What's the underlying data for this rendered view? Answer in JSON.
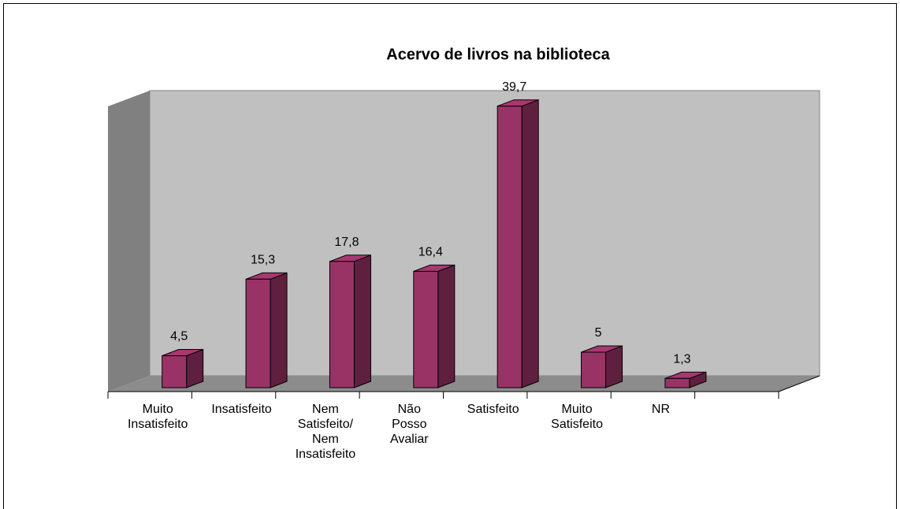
{
  "chart_data": {
    "type": "bar3d",
    "title": "Acervo de livros na biblioteca",
    "categories": [
      "Muito Insatisfeito",
      "Insatisfeito",
      "Nem Satisfeito/ Nem Insatisfeito",
      "Não Posso Avaliar",
      "Satisfeito",
      "Muito Satisfeito",
      "NR",
      null
    ],
    "values": [
      4.5,
      15.3,
      17.8,
      16.4,
      39.7,
      5,
      1.3,
      null
    ],
    "value_labels": [
      "4,5",
      "15,3",
      "17,8",
      "16,4",
      "39,7",
      "5",
      "1,3",
      null
    ],
    "color": "#993366",
    "ylim": [
      0,
      40
    ]
  }
}
